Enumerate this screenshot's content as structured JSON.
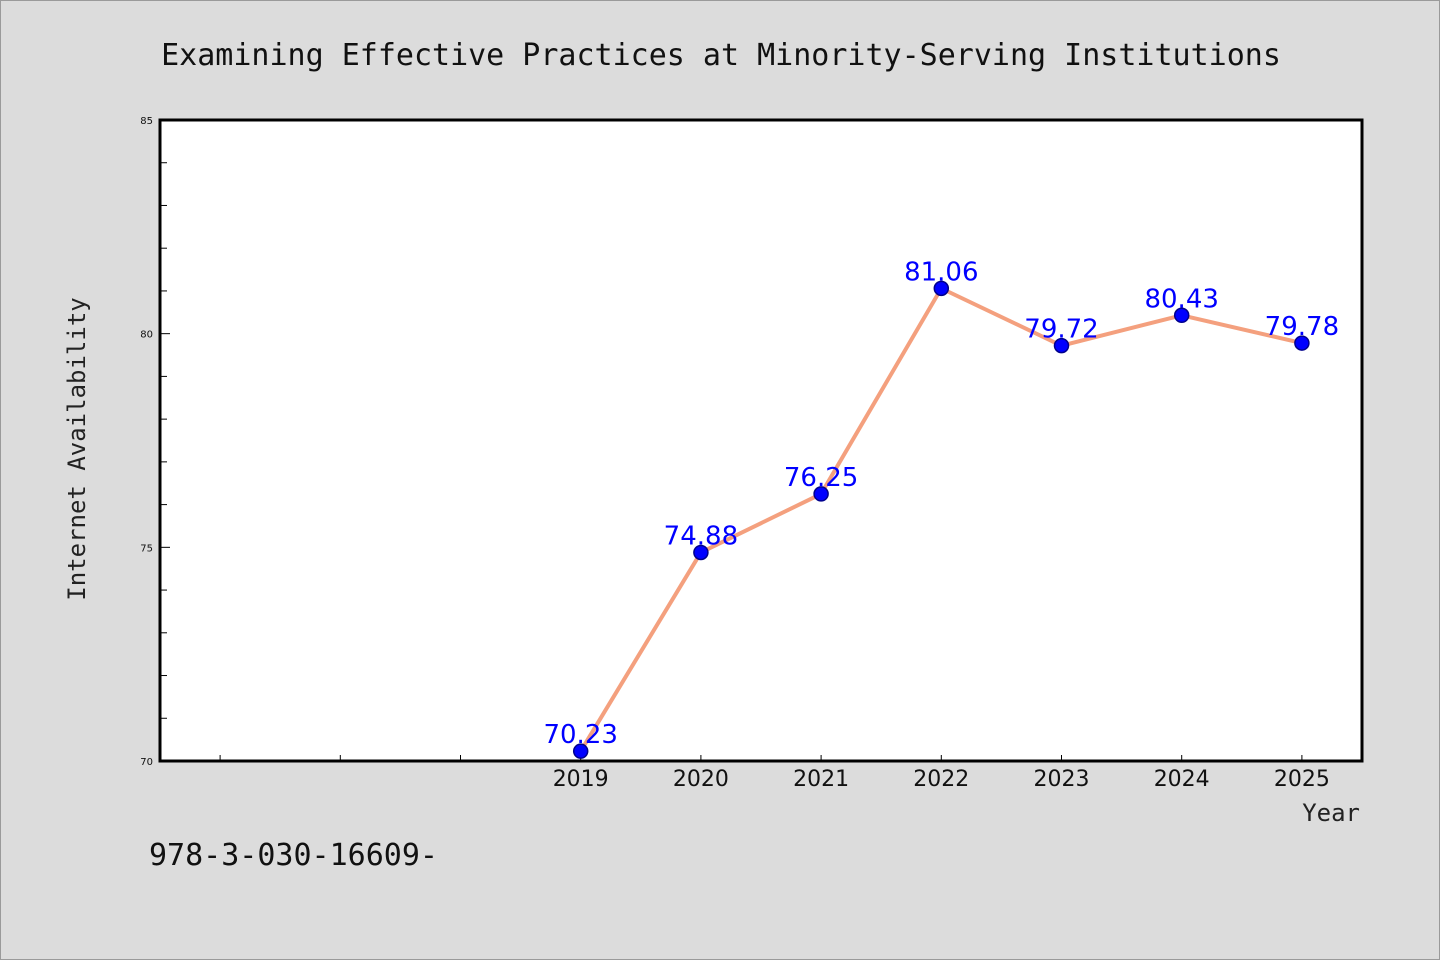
{
  "chart_data": {
    "type": "line",
    "title": "Examining Effective Practices at Minority-Serving Institutions",
    "xlabel": "Year",
    "ylabel": "Internet Availability",
    "categories": [
      "2019",
      "2020",
      "2021",
      "2022",
      "2023",
      "2024",
      "2025"
    ],
    "series": [
      {
        "values": [
          70.23,
          74.88,
          76.25,
          81.06,
          79.72,
          80.43,
          79.78
        ]
      }
    ],
    "data_labels": [
      "70.23",
      "74.88",
      "76.25",
      "81.06",
      "79.72",
      "80.43",
      "79.78"
    ],
    "ylim": [
      70,
      85
    ],
    "yticks": [
      "70",
      "75",
      "80",
      "85"
    ],
    "x_slots": 10,
    "grid": false,
    "legend": "none",
    "colors": {
      "line": "#f4a07e",
      "marker": "#0000ff",
      "marker_edge": "#00008b",
      "label": "#0000ff",
      "plot_bg": "#ffffff",
      "figure_bg": "#dcdcdc"
    }
  },
  "footer": {
    "text": "978-3-030-16609-"
  }
}
